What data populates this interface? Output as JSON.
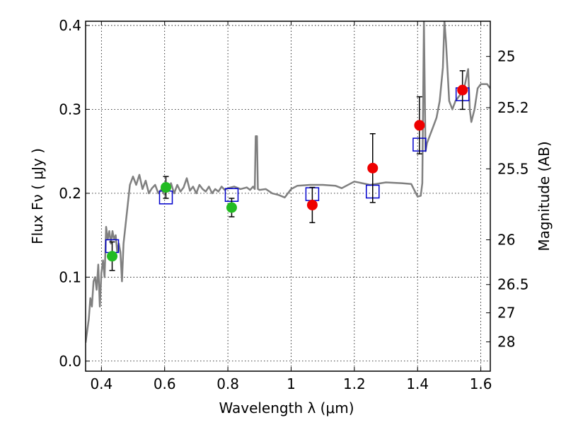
{
  "chart_data": {
    "type": "scatter",
    "xlabel": "Wavelength  λ (μm)",
    "ylabel": "Flux  Fν  ( μJy )",
    "y2label": "Magnitude (AB)",
    "xlim": [
      0.35,
      1.63
    ],
    "ylim": [
      -0.012,
      0.405
    ],
    "x_ticks": [
      {
        "value": 0.4,
        "label": "0.4"
      },
      {
        "value": 0.6,
        "label": "0.6"
      },
      {
        "value": 0.8,
        "label": "0.8"
      },
      {
        "value": 1.0,
        "label": "1"
      },
      {
        "value": 1.2,
        "label": "1.2"
      },
      {
        "value": 1.4,
        "label": "1.4"
      },
      {
        "value": 1.6,
        "label": "1.6"
      }
    ],
    "y_ticks": [
      {
        "value": 0.0,
        "label": "0.0"
      },
      {
        "value": 0.1,
        "label": "0.1"
      },
      {
        "value": 0.2,
        "label": "0.2"
      },
      {
        "value": 0.3,
        "label": "0.3"
      },
      {
        "value": 0.4,
        "label": "0.4"
      }
    ],
    "y2_ticks": [
      {
        "mag": 25,
        "label": "25"
      },
      {
        "mag": 25.2,
        "label": "25.2"
      },
      {
        "mag": 25.5,
        "label": "25.5"
      },
      {
        "mag": 26,
        "label": "26"
      },
      {
        "mag": 26.5,
        "label": "26.5"
      },
      {
        "mag": 27,
        "label": "27"
      },
      {
        "mag": 28,
        "label": "28"
      }
    ],
    "grid": true,
    "colors": {
      "model": "#808080",
      "model_points": "#0000cc",
      "green_points": "#22bb22",
      "red_points": "#ee0000",
      "errorbar": "#000000"
    },
    "series": [
      {
        "kind": "line",
        "points": [
          [
            0.35,
            0.022
          ],
          [
            0.36,
            0.05
          ],
          [
            0.365,
            0.075
          ],
          [
            0.37,
            0.065
          ],
          [
            0.375,
            0.095
          ],
          [
            0.38,
            0.1
          ],
          [
            0.385,
            0.085
          ],
          [
            0.39,
            0.115
          ],
          [
            0.395,
            0.065
          ],
          [
            0.4,
            0.105
          ],
          [
            0.405,
            0.12
          ],
          [
            0.41,
            0.1
          ],
          [
            0.415,
            0.16
          ],
          [
            0.42,
            0.145
          ],
          [
            0.425,
            0.155
          ],
          [
            0.43,
            0.14
          ],
          [
            0.435,
            0.155
          ],
          [
            0.44,
            0.145
          ],
          [
            0.445,
            0.15
          ],
          [
            0.45,
            0.13
          ],
          [
            0.455,
            0.14
          ],
          [
            0.46,
            0.13
          ],
          [
            0.465,
            0.095
          ],
          [
            0.47,
            0.14
          ],
          [
            0.48,
            0.175
          ],
          [
            0.49,
            0.21
          ],
          [
            0.5,
            0.22
          ],
          [
            0.51,
            0.21
          ],
          [
            0.52,
            0.222
          ],
          [
            0.53,
            0.205
          ],
          [
            0.54,
            0.215
          ],
          [
            0.55,
            0.2
          ],
          [
            0.56,
            0.206
          ],
          [
            0.57,
            0.21
          ],
          [
            0.58,
            0.2
          ],
          [
            0.59,
            0.205
          ],
          [
            0.6,
            0.198
          ],
          [
            0.61,
            0.205
          ],
          [
            0.62,
            0.212
          ],
          [
            0.63,
            0.2
          ],
          [
            0.64,
            0.21
          ],
          [
            0.65,
            0.202
          ],
          [
            0.66,
            0.207
          ],
          [
            0.67,
            0.218
          ],
          [
            0.68,
            0.203
          ],
          [
            0.69,
            0.208
          ],
          [
            0.7,
            0.2
          ],
          [
            0.71,
            0.21
          ],
          [
            0.72,
            0.205
          ],
          [
            0.73,
            0.202
          ],
          [
            0.74,
            0.208
          ],
          [
            0.75,
            0.2
          ],
          [
            0.76,
            0.205
          ],
          [
            0.77,
            0.202
          ],
          [
            0.78,
            0.208
          ],
          [
            0.79,
            0.204
          ],
          [
            0.8,
            0.206
          ],
          [
            0.82,
            0.208
          ],
          [
            0.84,
            0.205
          ],
          [
            0.86,
            0.207
          ],
          [
            0.87,
            0.204
          ],
          [
            0.88,
            0.208
          ],
          [
            0.885,
            0.205
          ],
          [
            0.888,
            0.268
          ],
          [
            0.892,
            0.268
          ],
          [
            0.895,
            0.205
          ],
          [
            0.9,
            0.204
          ],
          [
            0.92,
            0.205
          ],
          [
            0.94,
            0.2
          ],
          [
            0.96,
            0.198
          ],
          [
            0.98,
            0.195
          ],
          [
            1.0,
            0.205
          ],
          [
            1.02,
            0.209
          ],
          [
            1.06,
            0.21
          ],
          [
            1.1,
            0.21
          ],
          [
            1.14,
            0.209
          ],
          [
            1.16,
            0.206
          ],
          [
            1.2,
            0.214
          ],
          [
            1.25,
            0.21
          ],
          [
            1.3,
            0.213
          ],
          [
            1.35,
            0.212
          ],
          [
            1.38,
            0.211
          ],
          [
            1.4,
            0.196
          ],
          [
            1.41,
            0.197
          ],
          [
            1.415,
            0.212
          ],
          [
            1.42,
            0.405
          ],
          [
            1.425,
            0.25
          ],
          [
            1.43,
            0.26
          ],
          [
            1.44,
            0.27
          ],
          [
            1.45,
            0.28
          ],
          [
            1.46,
            0.29
          ],
          [
            1.47,
            0.31
          ],
          [
            1.48,
            0.35
          ],
          [
            1.485,
            0.405
          ],
          [
            1.49,
            0.38
          ],
          [
            1.5,
            0.31
          ],
          [
            1.51,
            0.3
          ],
          [
            1.52,
            0.31
          ],
          [
            1.53,
            0.315
          ],
          [
            1.54,
            0.32
          ],
          [
            1.55,
            0.33
          ],
          [
            1.56,
            0.348
          ],
          [
            1.565,
            0.3
          ],
          [
            1.57,
            0.285
          ],
          [
            1.58,
            0.3
          ],
          [
            1.59,
            0.325
          ],
          [
            1.6,
            0.33
          ],
          [
            1.62,
            0.33
          ],
          [
            1.63,
            0.325
          ]
        ]
      },
      {
        "kind": "open_square",
        "points": [
          [
            0.434,
            0.137
          ],
          [
            0.604,
            0.195
          ],
          [
            0.812,
            0.198
          ],
          [
            1.067,
            0.199
          ],
          [
            1.258,
            0.202
          ],
          [
            1.406,
            0.258
          ],
          [
            1.542,
            0.318
          ]
        ]
      },
      {
        "kind": "filled_circle_green",
        "points": [
          [
            0.434,
            0.125,
            0.017
          ],
          [
            0.604,
            0.207,
            0.013
          ],
          [
            0.812,
            0.183,
            0.011
          ]
        ]
      },
      {
        "kind": "filled_circle_red",
        "points": [
          [
            1.067,
            0.186,
            0.021
          ],
          [
            1.258,
            0.23,
            0.041
          ],
          [
            1.406,
            0.281,
            0.034
          ],
          [
            1.542,
            0.323,
            0.023
          ]
        ]
      }
    ]
  }
}
